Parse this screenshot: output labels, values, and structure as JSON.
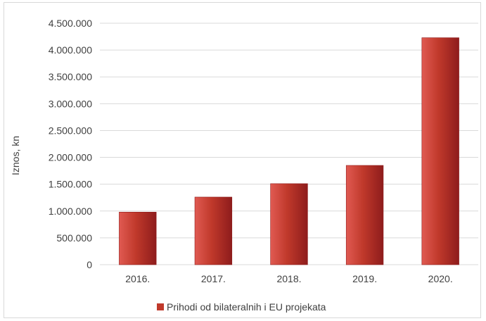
{
  "chart_data": {
    "type": "bar",
    "categories": [
      "2016.",
      "2017.",
      "2018.",
      "2019.",
      "2020."
    ],
    "series": [
      {
        "name": "Prihodi od bilateralnih i EU projekata",
        "values": [
          980000,
          1260000,
          1510000,
          1850000,
          4230000
        ]
      }
    ],
    "ylabel": "Iznos, kn",
    "ylim": [
      0,
      4500000
    ],
    "yticks": [
      0,
      500000,
      1000000,
      1500000,
      2000000,
      2500000,
      3000000,
      3500000,
      4000000,
      4500000
    ],
    "ytick_labels": [
      "0",
      "500.000",
      "1.000.000",
      "1.500.000",
      "2.000.000",
      "2.500.000",
      "3.000.000",
      "3.500.000",
      "4.000.000",
      "4.500.000"
    ],
    "grid": true,
    "legend_position": "bottom",
    "colors": {
      "bar": "#c0392b",
      "bar_light": "#e05a52",
      "bar_dark": "#8e1c1c",
      "grid": "#d9d9d9"
    }
  }
}
